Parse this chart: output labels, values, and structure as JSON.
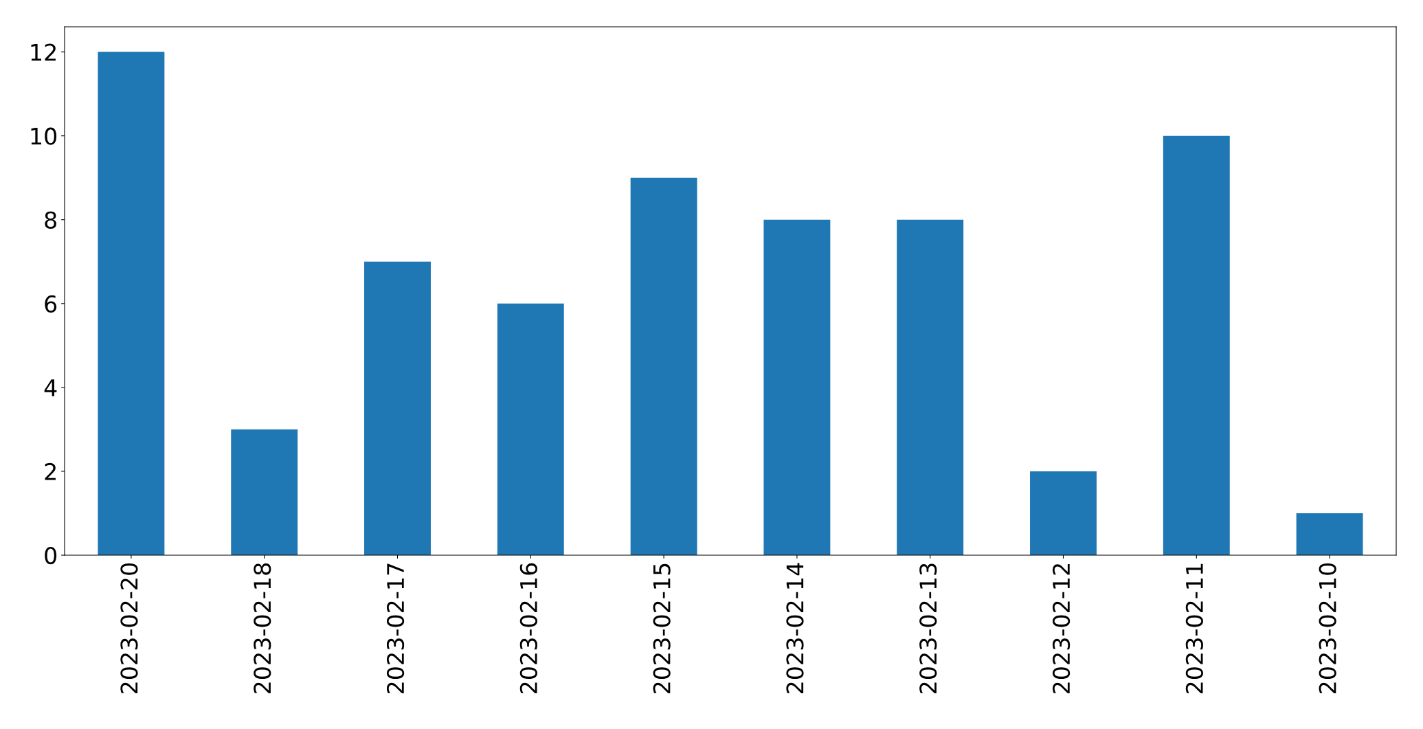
{
  "chart_data": {
    "type": "bar",
    "categories": [
      "2023-02-20",
      "2023-02-18",
      "2023-02-17",
      "2023-02-16",
      "2023-02-15",
      "2023-02-14",
      "2023-02-13",
      "2023-02-12",
      "2023-02-11",
      "2023-02-10"
    ],
    "values": [
      12,
      3,
      7,
      6,
      9,
      8,
      8,
      2,
      10,
      1
    ],
    "color": "#1f77b4",
    "ylim": [
      0,
      12.6
    ],
    "yticks": [
      0,
      2,
      4,
      6,
      8,
      10,
      12
    ],
    "grid": false
  }
}
